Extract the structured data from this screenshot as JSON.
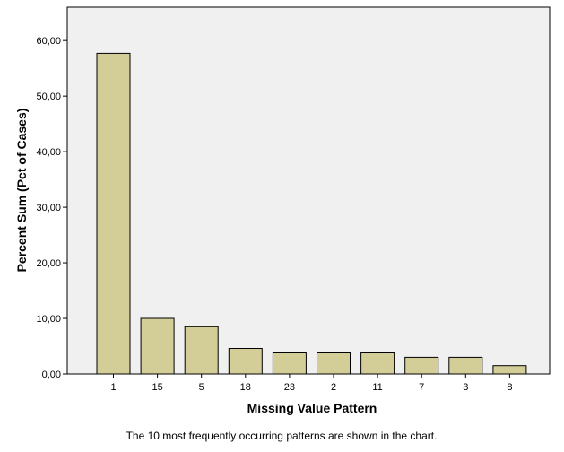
{
  "chart_data": {
    "type": "bar",
    "categories": [
      "1",
      "15",
      "5",
      "18",
      "23",
      "2",
      "11",
      "7",
      "3",
      "8"
    ],
    "values": [
      57.7,
      10.0,
      8.5,
      4.6,
      3.8,
      3.8,
      3.8,
      3.0,
      3.0,
      1.5
    ],
    "title": "",
    "xlabel": "Missing Value Pattern",
    "ylabel": "Percent Sum (Pct of Cases)",
    "ylim": [
      0,
      66
    ],
    "yticks": [
      0,
      10,
      20,
      30,
      40,
      50,
      60
    ],
    "ytick_labels": [
      "0,00",
      "10,00",
      "20,00",
      "30,00",
      "40,00",
      "50,00",
      "60,00"
    ],
    "grid": false,
    "legend": "none",
    "colors": {
      "bar_fill": "#d3ce97",
      "bar_stroke": "#000000",
      "plot_background": "#f0f0f0",
      "frame": "#000000"
    },
    "footnote": "The 10 most frequently occurring patterns are shown in the chart."
  }
}
